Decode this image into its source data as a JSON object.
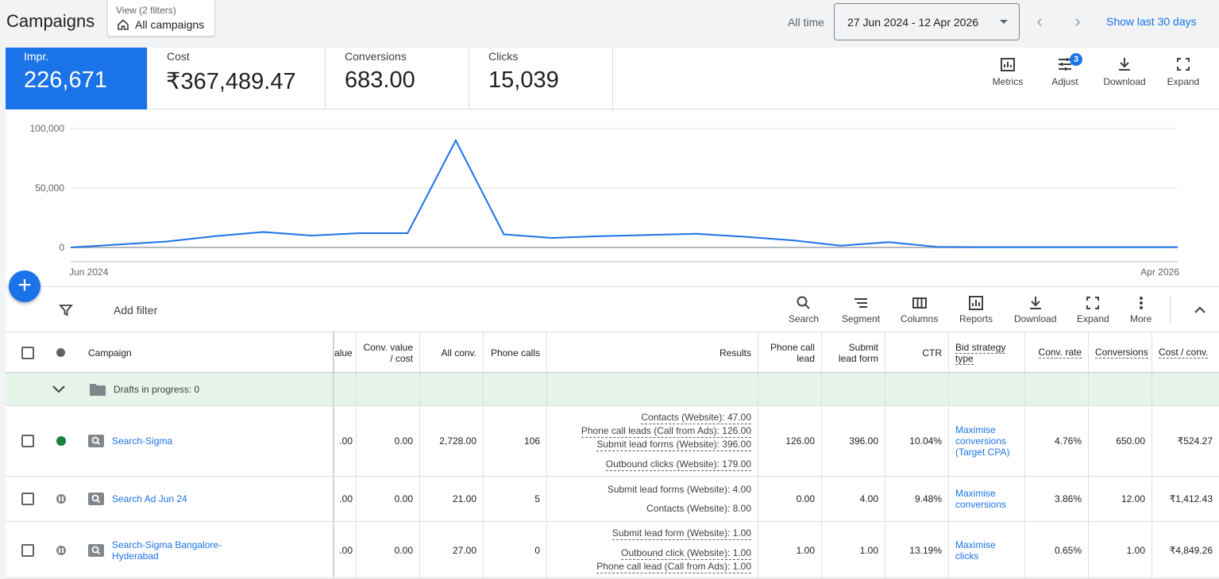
{
  "header": {
    "title": "Campaigns",
    "view_label": "View (2 filters)",
    "view_value": "All campaigns",
    "all_time": "All time",
    "date_range": "27 Jun 2024 - 12 Apr 2026",
    "show_last": "Show last 30 days"
  },
  "metrics": [
    {
      "label": "Impr.",
      "value": "226,671"
    },
    {
      "label": "Cost",
      "value": "₹367,489.47"
    },
    {
      "label": "Conversions",
      "value": "683.00"
    },
    {
      "label": "Clicks",
      "value": "15,039"
    }
  ],
  "metric_tools": {
    "metrics": "Metrics",
    "adjust": "Adjust",
    "adjust_badge": "3",
    "download": "Download",
    "expand": "Expand"
  },
  "chart_data": {
    "type": "line",
    "series": [
      {
        "values": [
          0,
          2500,
          5000,
          9500,
          13000,
          10000,
          12000,
          12000,
          90000,
          11000,
          8000,
          9500,
          10500,
          11500,
          9000,
          6000,
          1500,
          4500,
          500,
          300,
          300,
          300,
          300,
          300
        ]
      }
    ],
    "ylim": [
      0,
      100000
    ],
    "yticks": [
      "100,000",
      "50,000",
      "0"
    ],
    "xticks": [
      "Jun 2024",
      "Apr 2026"
    ],
    "color": "#1a73e8"
  },
  "filterbar": {
    "add_filter": "Add filter",
    "tools": {
      "search": "Search",
      "segment": "Segment",
      "columns": "Columns",
      "reports": "Reports",
      "download": "Download",
      "expand": "Expand",
      "more": "More"
    }
  },
  "table": {
    "headers": {
      "campaign": "Campaign",
      "value": "alue",
      "conv_value_cost_1": "Conv. value",
      "conv_value_cost_2": "/ cost",
      "all_conv": "All conv.",
      "phone_calls": "Phone calls",
      "results": "Results",
      "phone_call_lead_1": "Phone call",
      "phone_call_lead_2": "lead",
      "submit_lead_form_1": "Submit",
      "submit_lead_form_2": "lead form",
      "ctr": "CTR",
      "bid_strategy_1": "Bid strategy",
      "bid_strategy_2": "type",
      "conv_rate": "Conv. rate",
      "conversions": "Conversions",
      "cost_conv": "Cost / conv."
    },
    "drafts": "Drafts in progress: 0",
    "rows": [
      {
        "name": "Search-Sigma",
        "value": ".00",
        "conv_value_cost": "0.00",
        "all_conv": "2,728.00",
        "phone_calls": "106",
        "results": [
          "Contacts (Website): 47.00",
          "Phone call leads (Call from Ads): 126.00",
          "Submit lead forms (Website): 396.00",
          "Outbound clicks (Website): 179.00"
        ],
        "phone_call_lead": "126.00",
        "submit_lead_form": "396.00",
        "ctr": "10.04%",
        "bid_1": "Maximise",
        "bid_2": "conversions",
        "bid_3": "(Target CPA)",
        "conv_rate": "4.76%",
        "conversions": "650.00",
        "cost_conv": "₹524.27"
      },
      {
        "name": "Search Ad Jun 24",
        "value": ".00",
        "conv_value_cost": "0.00",
        "all_conv": "21.00",
        "phone_calls": "5",
        "results": [
          "Submit lead forms (Website): 4.00",
          "Contacts (Website): 8.00"
        ],
        "phone_call_lead": "0.00",
        "submit_lead_form": "4.00",
        "ctr": "9.48%",
        "bid_1": "Maximise",
        "bid_2": "conversions",
        "conv_rate": "3.86%",
        "conversions": "12.00",
        "cost_conv": "₹1,412.43"
      },
      {
        "name_1": "Search-Sigma Bangalore-",
        "name_2": "Hyderabad",
        "value": ".00",
        "conv_value_cost": "0.00",
        "all_conv": "27.00",
        "phone_calls": "0",
        "results": [
          "Submit lead form (Website): 1.00",
          "Outbound click (Website): 1.00",
          "Phone call lead (Call from Ads): 1.00"
        ],
        "phone_call_lead": "1.00",
        "submit_lead_form": "1.00",
        "ctr": "13.19%",
        "bid_1": "Maximise",
        "bid_2": "clicks",
        "conv_rate": "0.65%",
        "conversions": "1.00",
        "cost_conv": "₹4,849.26"
      }
    ]
  }
}
